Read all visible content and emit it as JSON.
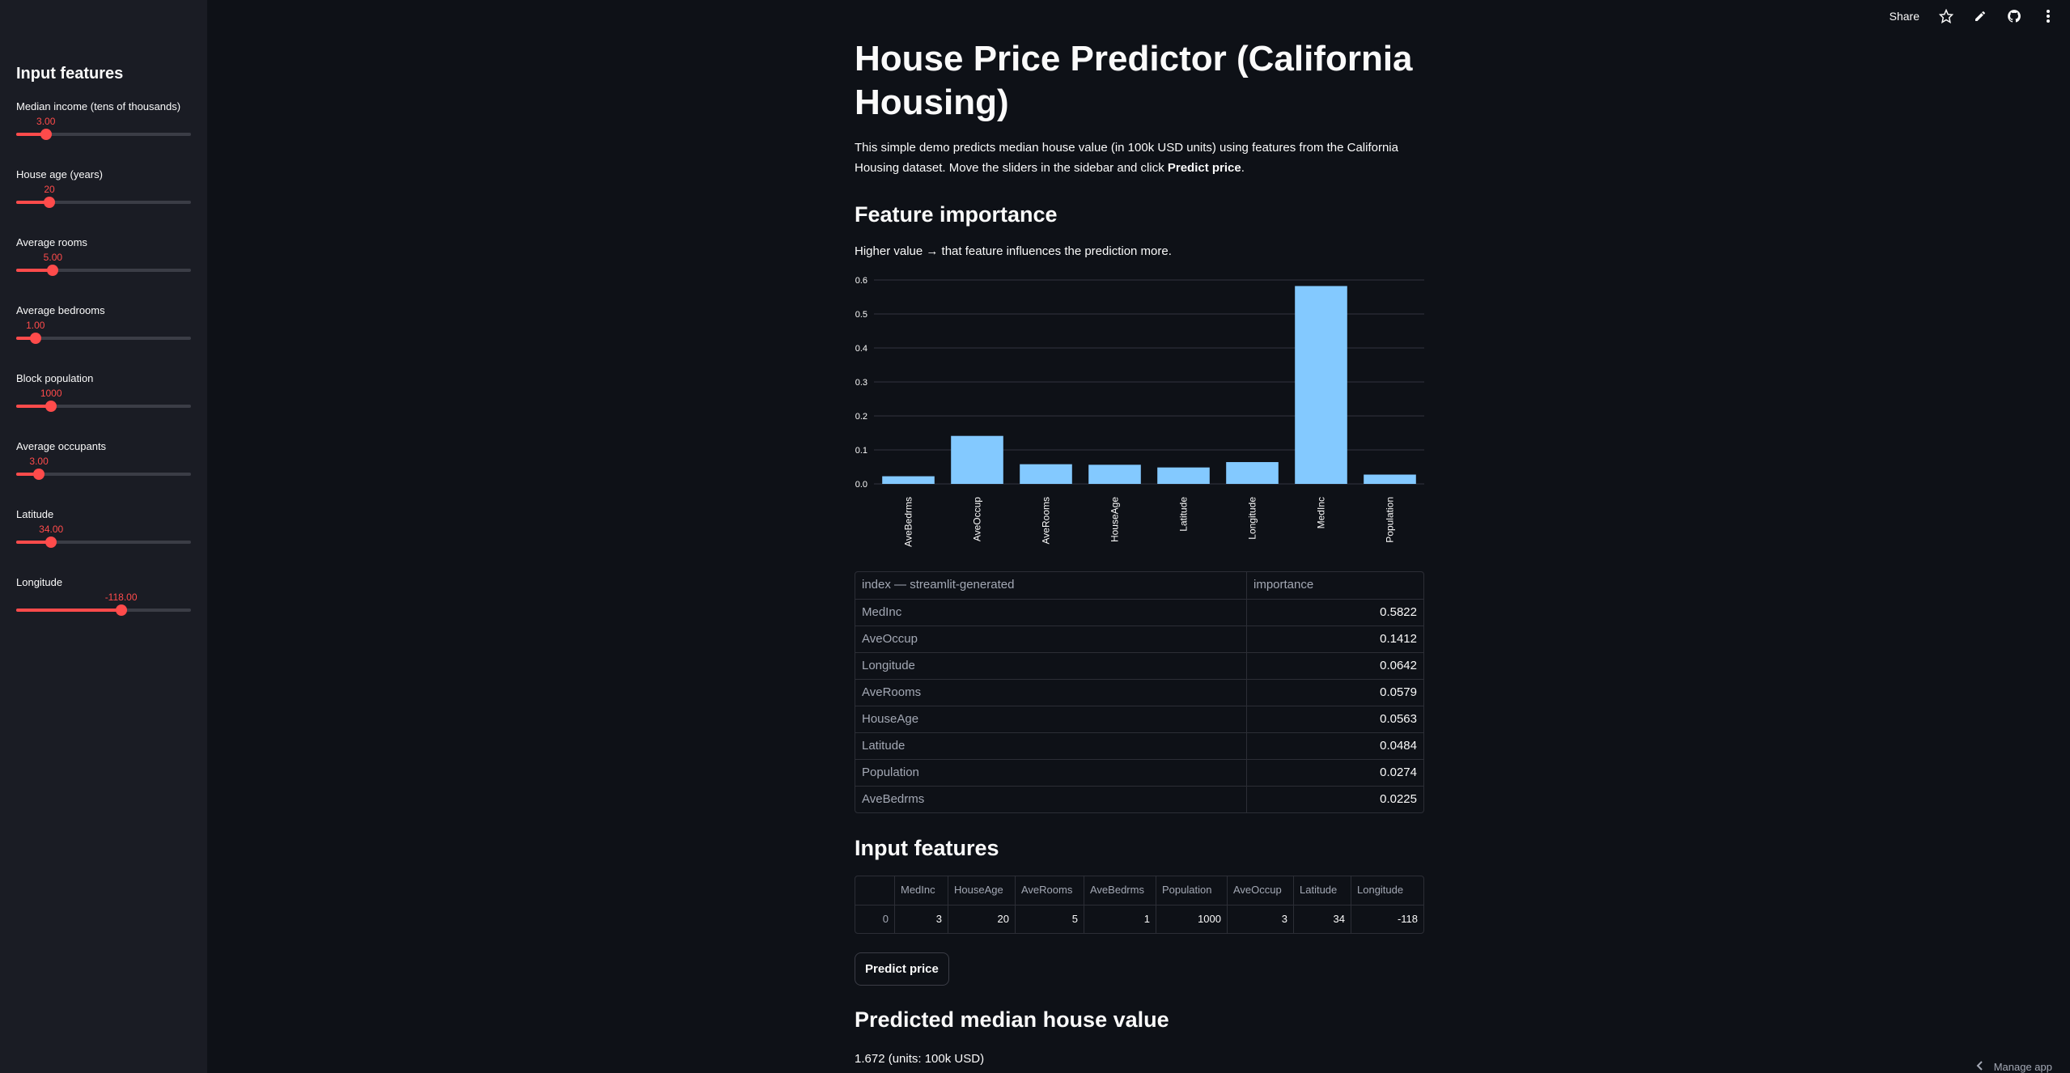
{
  "sidebar": {
    "title": "Input features",
    "sliders": [
      {
        "label": "Median income (tens of thousands)",
        "value": "3.00",
        "fraction": 0.17
      },
      {
        "label": "House age (years)",
        "value": "20",
        "fraction": 0.19
      },
      {
        "label": "Average rooms",
        "value": "5.00",
        "fraction": 0.21
      },
      {
        "label": "Average bedrooms",
        "value": "1.00",
        "fraction": 0.11
      },
      {
        "label": "Block population",
        "value": "1000",
        "fraction": 0.2
      },
      {
        "label": "Average occupants",
        "value": "3.00",
        "fraction": 0.13
      },
      {
        "label": "Latitude",
        "value": "34.00",
        "fraction": 0.2
      },
      {
        "label": "Longitude",
        "value": "-118.00",
        "fraction": 0.6
      }
    ]
  },
  "toolbar": {
    "share_label": "Share",
    "icons": [
      "star-icon",
      "pencil-icon",
      "github-icon",
      "more-vertical-icon"
    ]
  },
  "main": {
    "title": "House Price Predictor (California Housing)",
    "intro_text": "This simple demo predicts median house value (in 100k USD units) using features from the California Housing dataset. Move the sliders in the sidebar and click ",
    "intro_bold": "Predict price",
    "intro_end": ".",
    "feature_importance_heading": "Feature importance",
    "feature_importance_caption": "Higher value → that feature influences the prediction more.",
    "importance_table": {
      "columns": [
        "index — streamlit-generated",
        "importance"
      ],
      "rows": [
        [
          "MedInc",
          "0.5822"
        ],
        [
          "AveOccup",
          "0.1412"
        ],
        [
          "Longitude",
          "0.0642"
        ],
        [
          "AveRooms",
          "0.0579"
        ],
        [
          "HouseAge",
          "0.0563"
        ],
        [
          "Latitude",
          "0.0484"
        ],
        [
          "Population",
          "0.0274"
        ],
        [
          "AveBedrms",
          "0.0225"
        ]
      ]
    },
    "input_features_heading": "Input features",
    "input_table": {
      "columns": [
        "",
        "MedInc",
        "HouseAge",
        "AveRooms",
        "AveBedrms",
        "Population",
        "AveOccup",
        "Latitude",
        "Longitude"
      ],
      "rows": [
        [
          "0",
          "3",
          "20",
          "5",
          "1",
          "1000",
          "3",
          "34",
          "-118"
        ]
      ]
    },
    "predict_button_label": "Predict price",
    "prediction_heading": "Predicted median house value",
    "prediction_text": "1.672 (units: 100k USD)"
  },
  "footer": {
    "manage_label": "Manage app"
  },
  "colors": {
    "accent": "#ff4b4b",
    "bar": "#83c9ff",
    "background": "#0e1117",
    "sidebar": "#1a1c24"
  },
  "chart_data": {
    "type": "bar",
    "categories": [
      "AveBedrms",
      "AveOccup",
      "AveRooms",
      "HouseAge",
      "Latitude",
      "Longitude",
      "MedInc",
      "Population"
    ],
    "values": [
      0.0225,
      0.1412,
      0.0579,
      0.0563,
      0.0484,
      0.0642,
      0.5822,
      0.0274
    ],
    "yticks": [
      "0.0",
      "0.1",
      "0.2",
      "0.3",
      "0.4",
      "0.5",
      "0.6"
    ],
    "ylim": [
      0,
      0.6
    ],
    "grid": true
  }
}
